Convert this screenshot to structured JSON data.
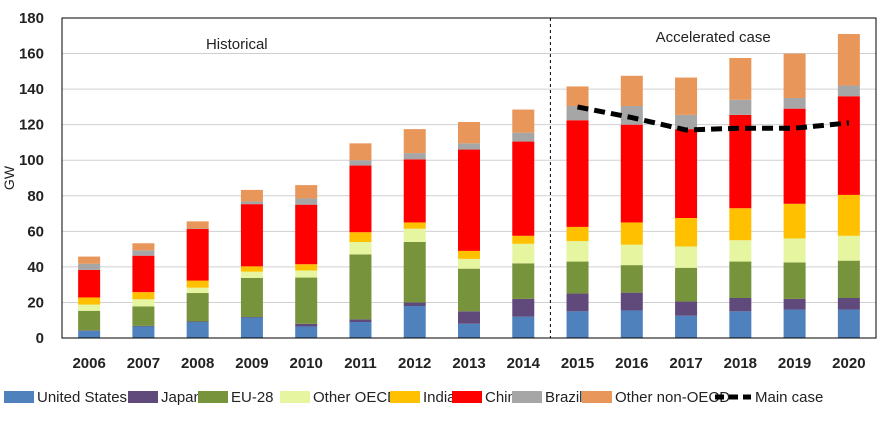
{
  "chart_data": {
    "type": "bar",
    "stacked": true,
    "ylabel": "GW",
    "ylim": [
      0,
      180
    ],
    "yticks": [
      0,
      20,
      40,
      60,
      80,
      100,
      120,
      140,
      160,
      180
    ],
    "grid": true,
    "legend_position": "bottom",
    "categories": [
      "2006",
      "2007",
      "2008",
      "2009",
      "2010",
      "2011",
      "2012",
      "2013",
      "2014",
      "2015",
      "2016",
      "2017",
      "2018",
      "2019",
      "2020"
    ],
    "annotations": {
      "historical": "Historical",
      "accelerated": "Accelerated  case"
    },
    "series": [
      {
        "name": "United States",
        "color": "#4f81bd",
        "values": [
          4,
          6.5,
          9,
          11.5,
          6.5,
          9,
          18,
          8,
          12,
          15,
          15.5,
          12.5,
          15,
          16,
          16
        ]
      },
      {
        "name": "Japan",
        "color": "#604a7b",
        "values": [
          0.3,
          0.3,
          0.3,
          0.3,
          1.5,
          1.5,
          2,
          7,
          10,
          10,
          10,
          8,
          7.5,
          6,
          6.5
        ]
      },
      {
        "name": "EU-28",
        "color": "#77933c",
        "values": [
          11,
          11,
          16,
          22,
          26,
          36.5,
          34,
          24,
          20,
          18,
          15.5,
          19,
          20.5,
          20.5,
          21
        ]
      },
      {
        "name": "Other OECD",
        "color": "#e6f5a0",
        "values": [
          3.5,
          4,
          3,
          3.5,
          4,
          7,
          7.5,
          5.5,
          11,
          11.5,
          11.5,
          12,
          12,
          13.5,
          14
        ]
      },
      {
        "name": "India",
        "color": "#ffc000",
        "values": [
          4,
          4,
          4,
          3,
          3.5,
          5.5,
          3.5,
          4.5,
          4.5,
          8,
          12.5,
          16,
          18,
          19.5,
          23
        ]
      },
      {
        "name": "China",
        "color": "#ff0000",
        "values": [
          15.5,
          20.5,
          29,
          35,
          33.5,
          37.5,
          35.5,
          57,
          53,
          60,
          55,
          50,
          52.5,
          53.5,
          55.5
        ]
      },
      {
        "name": "Brazil",
        "color": "#a6a6a6",
        "values": [
          3.5,
          3,
          0.3,
          1.5,
          3.5,
          3,
          3.5,
          3.5,
          5,
          8,
          10.5,
          8,
          8.5,
          6,
          6
        ]
      },
      {
        "name": "Other non-OECD",
        "color": "#e9965b",
        "values": [
          4,
          4,
          4,
          6.5,
          7.5,
          9.5,
          13.5,
          12,
          13,
          11,
          17,
          21,
          23.5,
          25,
          29
        ]
      }
    ],
    "main_case": {
      "name": "Main case",
      "color": "#000000",
      "x": [
        "2015",
        "2016",
        "2017",
        "2018",
        "2019",
        "2020"
      ],
      "values": [
        130,
        124,
        117,
        118,
        118,
        121
      ]
    }
  }
}
